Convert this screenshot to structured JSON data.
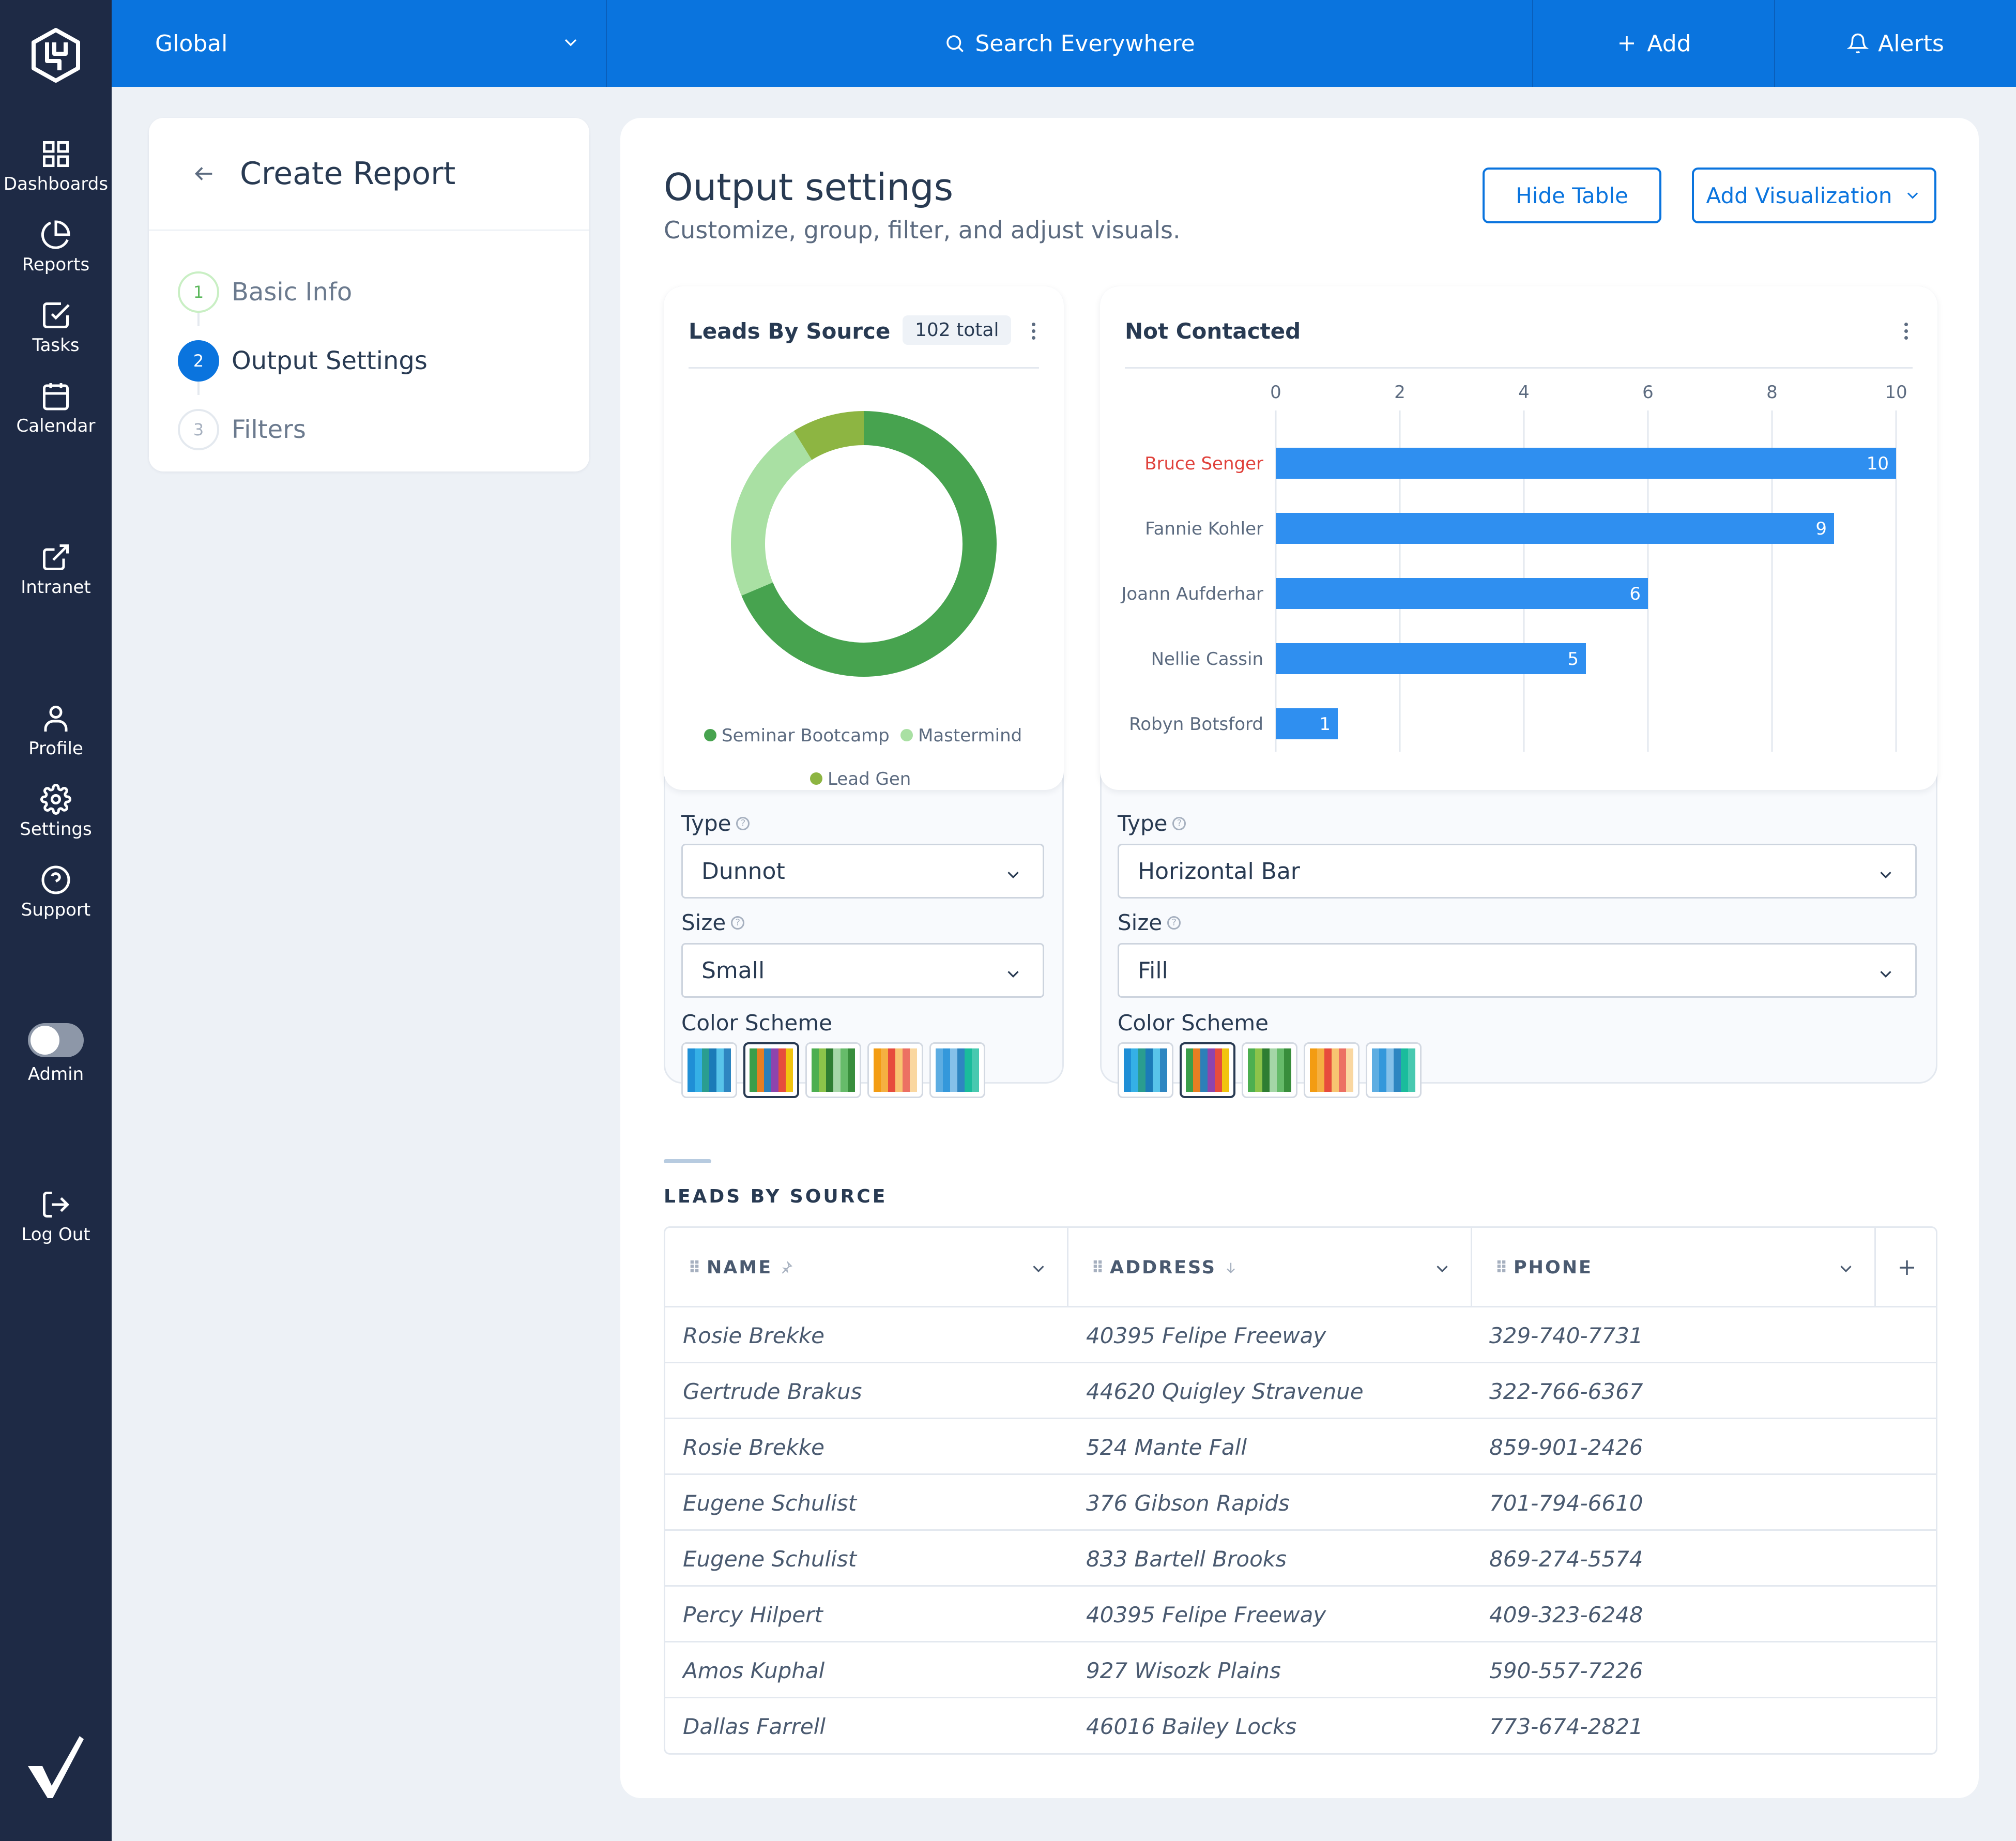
{
  "sidebar": {
    "items": [
      {
        "label": "Dashboards",
        "icon": "grid-icon"
      },
      {
        "label": "Reports",
        "icon": "pie-chart-icon"
      },
      {
        "label": "Tasks",
        "icon": "checkbox-icon"
      },
      {
        "label": "Calendar",
        "icon": "calendar-icon"
      },
      {
        "label": "Intranet",
        "icon": "external-link-icon"
      },
      {
        "label": "Profile",
        "icon": "user-icon"
      },
      {
        "label": "Settings",
        "icon": "gear-icon"
      },
      {
        "label": "Support",
        "icon": "help-circle-icon"
      },
      {
        "label": "Admin",
        "icon": "toggle-icon"
      },
      {
        "label": "Log Out",
        "icon": "logout-icon"
      }
    ],
    "admin_toggle_on": false
  },
  "topbar": {
    "scope": "Global",
    "search_label": "Search Everywhere",
    "add_label": "Add",
    "alerts_label": "Alerts"
  },
  "wizard": {
    "title": "Create Report",
    "steps": [
      {
        "num": "1",
        "label": "Basic Info",
        "state": "done"
      },
      {
        "num": "2",
        "label": "Output Settings",
        "state": "active"
      },
      {
        "num": "3",
        "label": "Filters",
        "state": "pending"
      }
    ]
  },
  "main": {
    "title": "Output settings",
    "subtitle": "Customize, group, filter, and adjust visuals.",
    "hide_table_label": "Hide Table",
    "add_visualization_label": "Add Visualization"
  },
  "panel_left": {
    "card_title": "Leads By Source",
    "badge": "102 total",
    "type_label": "Type",
    "type_value": "Dunnot",
    "size_label": "Size",
    "size_value": "Small",
    "color_scheme_label": "Color Scheme",
    "selected_scheme": 1
  },
  "panel_right": {
    "card_title": "Not Contacted",
    "type_label": "Type",
    "type_value": "Horizontal Bar",
    "size_label": "Size",
    "size_value": "Fill",
    "color_scheme_label": "Color Scheme",
    "selected_scheme": 1
  },
  "color_schemes": [
    [
      "#1f8fd6",
      "#35b0e6",
      "#2a9d8f",
      "#1b7bb8",
      "#58c4ea",
      "#2e86c1"
    ],
    [
      "#3a9e4a",
      "#e67e22",
      "#2c7fb8",
      "#8e44ad",
      "#e74c3c",
      "#f1c40f"
    ],
    [
      "#4caf50",
      "#8bc34a",
      "#2e7d32",
      "#a5d6a7",
      "#66bb6a",
      "#388e3c"
    ],
    [
      "#f39c12",
      "#f5b041",
      "#e74c3c",
      "#f8c471",
      "#ec7063",
      "#fad7a0"
    ],
    [
      "#5dade2",
      "#3498db",
      "#85c1e9",
      "#2e86c1",
      "#1abc9c",
      "#48c9b0"
    ]
  ],
  "chart_data": [
    {
      "type": "pie",
      "title": "Leads By Source",
      "categories": [
        "Seminar Bootcamp",
        "Mastermind",
        "Lead Gen"
      ],
      "values": [
        70,
        23,
        9
      ],
      "colors": [
        "#47a34f",
        "#a9e0a3",
        "#8db542"
      ],
      "legend": "bottom"
    },
    {
      "type": "bar",
      "orientation": "horizontal",
      "title": "Not Contacted",
      "categories": [
        "Bruce Senger",
        "Fannie Kohler",
        "Joann Aufderhar",
        "Nellie Cassin",
        "Robyn Botsford"
      ],
      "values": [
        10,
        9,
        6,
        5,
        1
      ],
      "xlim": [
        0,
        10
      ],
      "xticks": [
        "0",
        "2",
        "4",
        "6",
        "8",
        "10"
      ],
      "bar_color": "#2f8ff0",
      "highlight_color": "#e0413b",
      "highlight_index": 0,
      "grid": true
    }
  ],
  "table": {
    "section_label": "LEADS BY SOURCE",
    "columns": [
      "NAME",
      "ADDRESS",
      "PHONE"
    ],
    "rows": [
      [
        "Rosie Brekke",
        "40395 Felipe Freeway",
        "329-740-7731"
      ],
      [
        "Gertrude Brakus",
        "44620 Quigley Stravenue",
        "322-766-6367"
      ],
      [
        "Rosie Brekke",
        "524 Mante Fall",
        "859-901-2426"
      ],
      [
        "Eugene Schulist",
        "376 Gibson Rapids",
        "701-794-6610"
      ],
      [
        "Eugene Schulist",
        "833 Bartell Brooks",
        "869-274-5574"
      ],
      [
        "Percy Hilpert",
        "40395 Felipe Freeway",
        "409-323-6248"
      ],
      [
        "Amos Kuphal",
        "927 Wisozk Plains",
        "590-557-7226"
      ],
      [
        "Dallas Farrell",
        "46016 Bailey Locks",
        "773-674-2821"
      ]
    ]
  }
}
